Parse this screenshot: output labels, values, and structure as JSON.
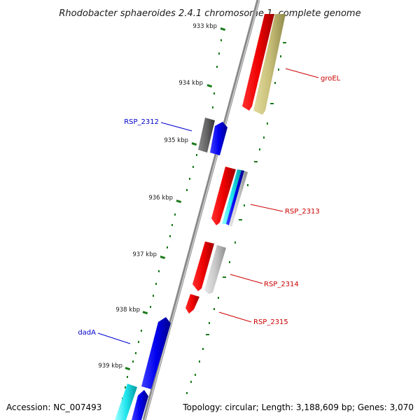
{
  "title": "Rhodobacter sphaeroides 2.4.1 chromosome 1, complete genome",
  "accession": "Accession: NC_007493",
  "topology": "Topology: circular; Length: 3,188,609 bp; Genes: 3,070",
  "colors": {
    "backbone": "#888888",
    "tick": "#1a7a1a",
    "forward_label": "#0000cc",
    "reverse_label": "#cc0000"
  },
  "ticks": [
    {
      "label": "933 kbp"
    },
    {
      "label": "934 kbp"
    },
    {
      "label": "935 kbp"
    },
    {
      "label": "936 kbp"
    },
    {
      "label": "937 kbp"
    },
    {
      "label": "938 kbp"
    },
    {
      "label": "939 kbp"
    }
  ],
  "gene_labels": [
    {
      "text": "groEL",
      "strand": "reverse"
    },
    {
      "text": "RSP_2312",
      "strand": "forward"
    },
    {
      "text": "RSP_2313",
      "strand": "reverse"
    },
    {
      "text": "RSP_2314",
      "strand": "reverse"
    },
    {
      "text": "RSP_2315",
      "strand": "reverse"
    },
    {
      "text": "dadA",
      "strand": "forward"
    }
  ]
}
